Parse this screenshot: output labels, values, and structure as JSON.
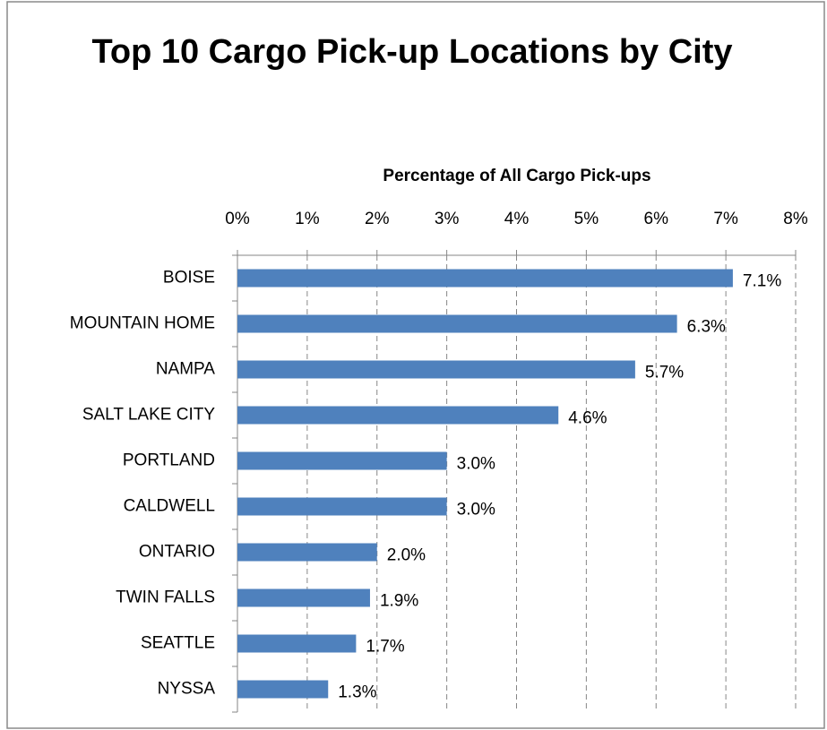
{
  "chart_data": {
    "type": "bar",
    "orientation": "horizontal",
    "title": "Top 10 Cargo Pick-up Locations by City",
    "x_label": "Percentage of All Cargo Pick-ups",
    "categories": [
      "BOISE",
      "MOUNTAIN HOME",
      "NAMPA",
      "SALT LAKE CITY",
      "PORTLAND",
      "CALDWELL",
      "ONTARIO",
      "TWIN FALLS",
      "SEATTLE",
      "NYSSA"
    ],
    "values": [
      7.1,
      6.3,
      5.7,
      4.6,
      3.0,
      3.0,
      2.0,
      1.9,
      1.7,
      1.3
    ],
    "value_labels": [
      "7.1%",
      "6.3%",
      "5.7%",
      "4.6%",
      "3.0%",
      "3.0%",
      "2.0%",
      "1.9%",
      "1.7%",
      "1.3%"
    ],
    "color": "#4f81bd",
    "xlim": [
      0,
      8
    ],
    "xticks": [
      {
        "value": 0,
        "label": "0%"
      },
      {
        "value": 1,
        "label": "1%"
      },
      {
        "value": 2,
        "label": "2%"
      },
      {
        "value": 3,
        "label": "3%"
      },
      {
        "value": 4,
        "label": "4%"
      },
      {
        "value": 5,
        "label": "5%"
      },
      {
        "value": 6,
        "label": "6%"
      },
      {
        "value": 7,
        "label": "7%"
      },
      {
        "value": 8,
        "label": "8%"
      }
    ],
    "grid": true
  }
}
